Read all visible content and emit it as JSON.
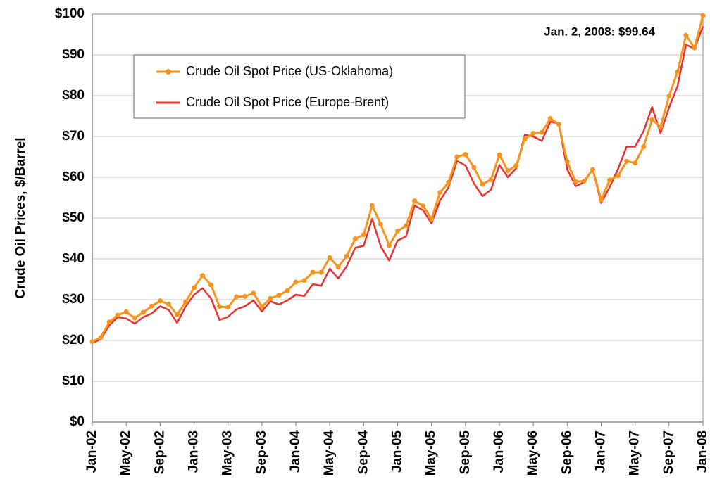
{
  "chart_data": {
    "type": "line",
    "y_label": "Crude Oil Prices, $/Barrel",
    "annotation": "Jan. 2, 2008: $99.64",
    "categories": [
      "Jan-02",
      null,
      null,
      null,
      "May-02",
      null,
      null,
      null,
      "Sep-02",
      null,
      null,
      null,
      "Jan-03",
      null,
      null,
      null,
      "May-03",
      null,
      null,
      null,
      "Sep-03",
      null,
      null,
      null,
      "Jan-04",
      null,
      null,
      null,
      "May-04",
      null,
      null,
      null,
      "Sep-04",
      null,
      null,
      null,
      "Jan-05",
      null,
      null,
      null,
      "May-05",
      null,
      null,
      null,
      "Sep-05",
      null,
      null,
      null,
      "Jan-06",
      null,
      null,
      null,
      "May-06",
      null,
      null,
      null,
      "Sep-06",
      null,
      null,
      null,
      "Jan-07",
      null,
      null,
      null,
      "May-07",
      null,
      null,
      null,
      "Sep-07",
      null,
      null,
      null,
      "Jan-08"
    ],
    "series": [
      {
        "name": "Crude Oil Spot Price (US-Oklahoma)",
        "color": "#f7941d",
        "markers": true,
        "values": [
          19.7,
          20.7,
          24.5,
          26.2,
          27.0,
          25.5,
          26.9,
          28.4,
          29.7,
          28.9,
          26.3,
          29.4,
          32.9,
          35.9,
          33.6,
          28.3,
          28.1,
          30.7,
          30.8,
          31.6,
          28.3,
          30.3,
          31.1,
          32.2,
          34.3,
          34.7,
          36.7,
          36.7,
          40.3,
          38.0,
          40.7,
          44.9,
          45.9,
          53.1,
          48.5,
          43.3,
          46.8,
          48.1,
          54.2,
          53.0,
          49.8,
          56.3,
          58.7,
          65.0,
          65.6,
          62.4,
          58.3,
          59.4,
          65.5,
          61.6,
          62.9,
          69.4,
          70.8,
          71.0,
          74.4,
          73.0,
          63.8,
          58.9,
          59.1,
          61.9,
          54.5,
          59.3,
          60.4,
          63.9,
          63.5,
          67.5,
          74.1,
          72.4,
          79.9,
          85.8,
          94.8,
          91.7,
          99.64
        ]
      },
      {
        "name": "Crude Oil Spot Price (Europe-Brent)",
        "color": "#e8322d",
        "markers": false,
        "values": [
          19.4,
          20.3,
          23.7,
          25.7,
          25.4,
          24.1,
          25.7,
          26.6,
          28.4,
          27.5,
          24.3,
          28.3,
          31.2,
          32.8,
          30.3,
          25.0,
          25.8,
          27.6,
          28.4,
          29.8,
          27.1,
          29.6,
          28.8,
          29.8,
          31.2,
          30.9,
          33.8,
          33.4,
          37.6,
          35.2,
          38.2,
          42.7,
          43.2,
          49.8,
          43.1,
          39.6,
          44.5,
          45.5,
          53.1,
          51.9,
          48.7,
          54.3,
          57.5,
          64.0,
          62.9,
          58.5,
          55.4,
          56.9,
          63.0,
          60.0,
          62.3,
          70.4,
          70.0,
          68.9,
          73.6,
          73.2,
          61.9,
          57.8,
          58.8,
          62.0,
          53.7,
          57.6,
          62.1,
          67.5,
          67.5,
          71.3,
          77.2,
          70.8,
          77.1,
          82.3,
          92.5,
          91.5,
          97.0
        ]
      }
    ],
    "ylim": [
      0,
      100
    ],
    "yticks": [
      {
        "value": 0,
        "label": "$0"
      },
      {
        "value": 10,
        "label": "$10"
      },
      {
        "value": 20,
        "label": "$20"
      },
      {
        "value": 30,
        "label": "$30"
      },
      {
        "value": 40,
        "label": "$40"
      },
      {
        "value": 50,
        "label": "$50"
      },
      {
        "value": 60,
        "label": "$60"
      },
      {
        "value": 70,
        "label": "$70"
      },
      {
        "value": 80,
        "label": "$80"
      },
      {
        "value": 90,
        "label": "$90"
      },
      {
        "value": 100,
        "label": "$100"
      }
    ],
    "grid": true,
    "legend": "upper left"
  }
}
